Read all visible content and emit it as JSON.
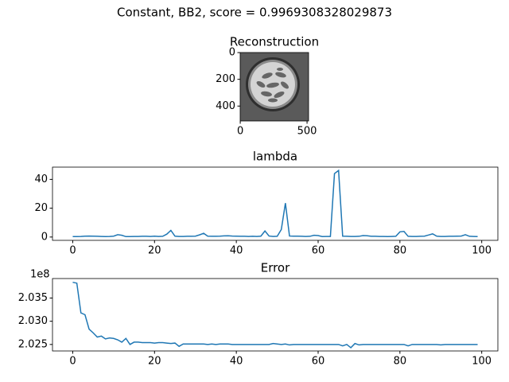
{
  "title": "Constant, BB2, score = 0.9969308328029873",
  "chart_data": [
    {
      "type": "image",
      "title": "Reconstruction",
      "xlim": [
        -0.5,
        511.5
      ],
      "ylim": [
        511.5,
        -0.5
      ],
      "xticks": [
        0,
        500
      ],
      "yticks": [
        0,
        200,
        400
      ]
    },
    {
      "type": "line",
      "title": "lambda",
      "color": "#1f77b4",
      "x": [
        0,
        1,
        2,
        3,
        4,
        5,
        6,
        7,
        8,
        9,
        10,
        11,
        12,
        13,
        14,
        15,
        16,
        17,
        18,
        19,
        20,
        21,
        22,
        23,
        24,
        25,
        26,
        27,
        28,
        29,
        30,
        31,
        32,
        33,
        34,
        35,
        36,
        37,
        38,
        39,
        40,
        41,
        42,
        43,
        44,
        45,
        46,
        47,
        48,
        49,
        50,
        51,
        52,
        53,
        54,
        55,
        56,
        57,
        58,
        59,
        60,
        61,
        62,
        63,
        64,
        65,
        66,
        67,
        68,
        69,
        70,
        71,
        72,
        73,
        74,
        75,
        76,
        77,
        78,
        79,
        80,
        81,
        82,
        83,
        84,
        85,
        86,
        87,
        88,
        89,
        90,
        91,
        92,
        93,
        94,
        95,
        96,
        97,
        98,
        99
      ],
      "values": [
        0.3,
        0.3,
        0.4,
        0.6,
        0.7,
        0.6,
        0.5,
        0.4,
        0.3,
        0.4,
        0.6,
        1.6,
        1.2,
        0.3,
        0.3,
        0.4,
        0.4,
        0.5,
        0.5,
        0.4,
        0.6,
        0.4,
        0.5,
        2.0,
        4.6,
        0.6,
        0.4,
        0.4,
        0.5,
        0.5,
        0.6,
        1.5,
        2.6,
        0.6,
        0.5,
        0.5,
        0.6,
        0.8,
        0.9,
        0.7,
        0.6,
        0.5,
        0.5,
        0.4,
        0.5,
        0.4,
        0.6,
        4.2,
        0.7,
        0.4,
        0.5,
        5.2,
        23.5,
        0.7,
        0.6,
        0.6,
        0.5,
        0.4,
        0.5,
        1.2,
        1.0,
        0.3,
        0.4,
        0.4,
        44.0,
        46.2,
        0.6,
        0.5,
        0.4,
        0.4,
        0.5,
        1.0,
        0.9,
        0.5,
        0.5,
        0.4,
        0.4,
        0.3,
        0.4,
        0.5,
        3.6,
        3.9,
        0.5,
        0.4,
        0.4,
        0.5,
        0.6,
        1.4,
        2.2,
        0.6,
        0.4,
        0.4,
        0.5,
        0.5,
        0.6,
        0.7,
        1.6,
        0.5,
        0.4,
        0.3
      ],
      "xlim": [
        -4.95,
        103.95
      ],
      "xticks": [
        0,
        20,
        40,
        60,
        80,
        100
      ],
      "ylim": [
        -2.3,
        48.5
      ],
      "yticks": [
        0,
        20,
        40
      ]
    },
    {
      "type": "line",
      "title": "Error",
      "color": "#1f77b4",
      "offset_label": "1e8",
      "x": [
        0,
        1,
        2,
        3,
        4,
        5,
        6,
        7,
        8,
        9,
        10,
        11,
        12,
        13,
        14,
        15,
        16,
        17,
        18,
        19,
        20,
        21,
        22,
        23,
        24,
        25,
        26,
        27,
        28,
        29,
        30,
        31,
        32,
        33,
        34,
        35,
        36,
        37,
        38,
        39,
        40,
        41,
        42,
        43,
        44,
        45,
        46,
        47,
        48,
        49,
        50,
        51,
        52,
        53,
        54,
        55,
        56,
        57,
        58,
        59,
        60,
        61,
        62,
        63,
        64,
        65,
        66,
        67,
        68,
        69,
        70,
        71,
        72,
        73,
        74,
        75,
        76,
        77,
        78,
        79,
        80,
        81,
        82,
        83,
        84,
        85,
        86,
        87,
        88,
        89,
        90,
        91,
        92,
        93,
        94,
        95,
        96,
        97,
        98,
        99
      ],
      "values": [
        2.0384,
        2.0382,
        2.0318,
        2.0314,
        2.0283,
        2.0275,
        2.0266,
        2.0268,
        2.0262,
        2.0264,
        2.0263,
        2.026,
        2.0255,
        2.0263,
        2.025,
        2.0255,
        2.0255,
        2.0254,
        2.0254,
        2.0254,
        2.0253,
        2.0254,
        2.0254,
        2.0253,
        2.0252,
        2.0253,
        2.0246,
        2.0251,
        2.0251,
        2.0251,
        2.0251,
        2.0251,
        2.0251,
        2.025,
        2.0251,
        2.025,
        2.0251,
        2.0251,
        2.0251,
        2.025,
        2.025,
        2.025,
        2.025,
        2.025,
        2.025,
        2.025,
        2.025,
        2.025,
        2.025,
        2.0252,
        2.0251,
        2.025,
        2.0251,
        2.0249,
        2.025,
        2.025,
        2.025,
        2.025,
        2.025,
        2.025,
        2.025,
        2.025,
        2.025,
        2.025,
        2.025,
        2.025,
        2.0247,
        2.025,
        2.0243,
        2.0252,
        2.0249,
        2.025,
        2.025,
        2.025,
        2.025,
        2.025,
        2.025,
        2.025,
        2.025,
        2.025,
        2.025,
        2.025,
        2.0247,
        2.025,
        2.025,
        2.025,
        2.025,
        2.025,
        2.025,
        2.025,
        2.0249,
        2.025,
        2.025,
        2.025,
        2.025,
        2.025,
        2.025,
        2.025,
        2.025,
        2.025
      ],
      "xlim": [
        -4.95,
        103.95
      ],
      "xticks": [
        0,
        20,
        40,
        60,
        80,
        100
      ],
      "ylim": [
        2.0236,
        2.0392
      ],
      "yticks": [
        2.025,
        {
          "value": 2.03,
          "label": "2.030"
        },
        2.035
      ]
    }
  ]
}
